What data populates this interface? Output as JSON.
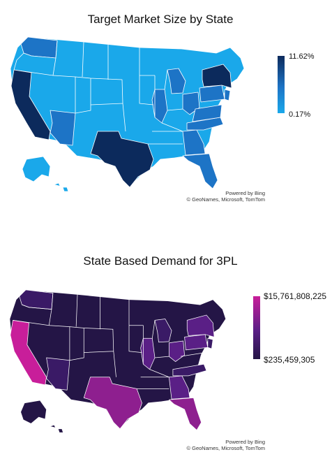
{
  "map1": {
    "title": "Target Market Size by State",
    "legend_max": "11.62%",
    "legend_min": "0.17%",
    "credit_line1": "Powered by Bing",
    "credit_line2": "© GeoNames, Microsoft, TomTom",
    "colors": {
      "low": "#1aa8ea",
      "mid": "#1d74c6",
      "high": "#0c2a5c",
      "border": "#ffffff"
    }
  },
  "map2": {
    "title": "State Based Demand for 3PL",
    "legend_max": "$15,761,808,225",
    "legend_min": "$235,459,305",
    "credit_line1": "Powered by Bing",
    "credit_line2": "© GeoNames, Microsoft, TomTom",
    "colors": {
      "low": "#241546",
      "mid": "#5a1f86",
      "high": "#c81e9a",
      "border": "#ffffff"
    }
  }
}
